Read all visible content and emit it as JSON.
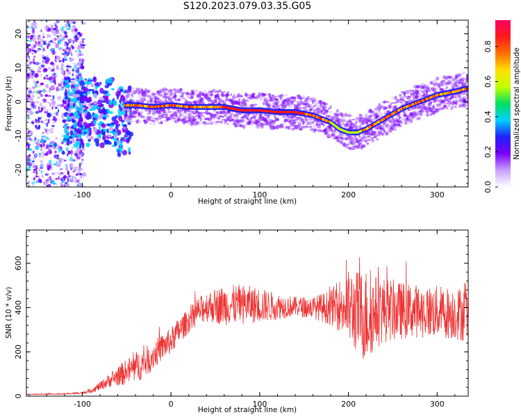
{
  "title": "S120.2023.079.03.35.G05",
  "chart_data": [
    {
      "type": "heatmap",
      "xlabel": "Height of straight line (km)",
      "ylabel": "Frequency (Hz)",
      "xlim": [
        -163,
        335
      ],
      "ylim": [
        -25,
        24
      ],
      "xticks": [
        -100,
        0,
        100,
        200,
        300
      ],
      "yticks": [
        -20,
        -10,
        0,
        10,
        20
      ],
      "colormap": "rainbow (purple → blue → cyan → green → yellow → red → pink)",
      "ridge_x": [
        -50,
        -40,
        -20,
        0,
        20,
        40,
        60,
        80,
        100,
        120,
        140,
        160,
        180,
        190,
        200,
        210,
        220,
        240,
        260,
        280,
        300,
        320,
        335
      ],
      "ridge_freq": [
        -1,
        -1,
        -1.5,
        -1,
        -1.5,
        -1.5,
        -1.5,
        -2.5,
        -2.5,
        -3,
        -3,
        -4,
        -6,
        -8,
        -9,
        -9,
        -8,
        -5,
        -2,
        0,
        2,
        3,
        4
      ],
      "colorbar": {
        "label": "Normalized spectral amplitude",
        "range": [
          0,
          0.95
        ],
        "ticks": [
          "0.0",
          "0.2",
          "0.4",
          "0.6",
          "0.8"
        ],
        "tick_values": [
          0,
          0.2,
          0.4,
          0.6,
          0.8
        ],
        "colors": [
          "#ffffff",
          "#c8a0ff",
          "#7a00ff",
          "#2020ff",
          "#00d0ff",
          "#00e060",
          "#c0ff00",
          "#ffe000",
          "#ff7000",
          "#ff1a1a",
          "#ff0060"
        ]
      }
    },
    {
      "type": "line",
      "xlabel": "Height of straight line (km)",
      "ylabel": "SNR (10 * v/v)",
      "xlim": [
        -163,
        335
      ],
      "ylim": [
        0,
        750
      ],
      "xticks": [
        -100,
        0,
        100,
        200,
        300
      ],
      "yticks": [
        0,
        200,
        400,
        600
      ],
      "color": "#ee3333",
      "envelope_x": [
        -163,
        -120,
        -100,
        -90,
        -80,
        -70,
        -60,
        -50,
        -40,
        -30,
        -20,
        -10,
        0,
        10,
        20,
        30,
        40,
        60,
        80,
        100,
        120,
        140,
        160,
        180,
        190,
        200,
        210,
        220,
        230,
        240,
        260,
        280,
        300,
        320,
        335
      ],
      "envelope_y": [
        8,
        10,
        15,
        25,
        45,
        70,
        90,
        110,
        130,
        150,
        185,
        220,
        250,
        300,
        340,
        380,
        405,
        410,
        415,
        410,
        405,
        405,
        400,
        400,
        410,
        400,
        380,
        360,
        380,
        390,
        385,
        385,
        380,
        375,
        370
      ],
      "noise_amplitude": [
        2,
        3,
        5,
        10,
        20,
        30,
        45,
        60,
        70,
        70,
        65,
        60,
        60,
        60,
        55,
        60,
        70,
        90,
        90,
        80,
        60,
        45,
        50,
        80,
        120,
        170,
        190,
        220,
        170,
        150,
        130,
        120,
        120,
        120,
        130
      ]
    }
  ]
}
